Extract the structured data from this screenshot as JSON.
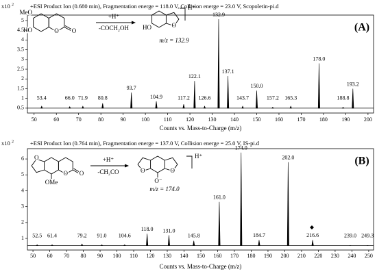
{
  "chart_data": [
    {
      "type": "spectrum",
      "title": "+ESI Product Ion (0.680 min), Fragmentation energe = 118.0 V, Collision energe = 23.0 V, Scopoletin-pi.d",
      "panel": "(A)",
      "y_multiplier": "x10",
      "y_multiplier_exp": "2",
      "x_label": "Counts vs. Mass-to-Charge (m/z)",
      "x": [
        53.4,
        66.0,
        71.9,
        80.8,
        93.7,
        104.9,
        117.2,
        122.1,
        126.6,
        132.9,
        137.1,
        143.7,
        150.0,
        157.2,
        165.3,
        178.0,
        188.8,
        193.2
      ],
      "x_labels": [
        "53.4",
        "66.0",
        "71.9",
        "80.8",
        "93.7",
        "104.9",
        "117.2",
        "122.1",
        "126.6",
        "132.9",
        "137.1",
        "143.7",
        "150.0",
        "157.2",
        "165.3",
        "178.0",
        "188.8",
        "193.2"
      ],
      "values": [
        0.6,
        0.58,
        0.6,
        0.75,
        1.3,
        0.85,
        0.7,
        1.9,
        0.6,
        5.07,
        2.15,
        0.6,
        1.4,
        0.55,
        0.6,
        2.8,
        0.55,
        1.5
      ],
      "baseline": 0.5,
      "color": "#000000",
      "xlim": [
        47,
        202.5
      ],
      "xticks": [
        50,
        60,
        70,
        80,
        90,
        100,
        110,
        120,
        130,
        140,
        150,
        160,
        170,
        180,
        190,
        200
      ],
      "ylim": [
        0.25,
        5.28
      ],
      "yticks": [
        0.5,
        1,
        1.5,
        2,
        2.5,
        3,
        3.5,
        4,
        4.5,
        5
      ],
      "scheme": {
        "reactant_labels": [
          "MeO",
          "HO",
          "O",
          "O"
        ],
        "reagent": "+H⁺",
        "loss": "-COCH₂OH",
        "product_labels": [
          "HO",
          "O"
        ],
        "ion": "H⁺",
        "mz": "m/z = 132.9"
      }
    },
    {
      "type": "spectrum",
      "title": "+ESI Product Ion (0.764 min), Fragmentation energe = 137.0 V, Collision energe = 25.0 V, IS-pi.d",
      "panel": "(B)",
      "y_multiplier": "x10",
      "y_multiplier_exp": "2",
      "x_label": "Counts vs. Mass-to-Charge (m/z)",
      "x": [
        52.5,
        61.4,
        79.2,
        91.0,
        104.6,
        118.0,
        131.0,
        145.8,
        161.0,
        174.0,
        184.7,
        202.0,
        216.6,
        239.0,
        249.3
      ],
      "x_labels": [
        "52.5",
        "61.4",
        "79.2",
        "91.0",
        "104.6",
        "118.0",
        "131.0",
        "145.8",
        "161.0",
        "174.0",
        "184.7",
        "202.0",
        "216.6",
        "239.0",
        "249.3"
      ],
      "values": [
        0.6,
        0.6,
        0.65,
        0.6,
        0.6,
        1.3,
        1.2,
        0.85,
        3.3,
        6.4,
        0.9,
        5.8,
        0.9,
        0.55,
        0.55
      ],
      "baseline": 0.55,
      "color": "#000000",
      "xlim": [
        46.7,
        252.9
      ],
      "xticks": [
        50,
        60,
        70,
        80,
        90,
        100,
        110,
        120,
        130,
        140,
        150,
        160,
        170,
        180,
        190,
        200,
        210,
        220,
        230,
        240,
        250
      ],
      "ylim": [
        0.27,
        6.65
      ],
      "yticks": [
        1,
        2,
        3,
        4,
        5,
        6
      ],
      "scheme": {
        "reactant_labels": [
          "O",
          "O",
          "O",
          "OMe"
        ],
        "reagent": "+H⁺",
        "loss": "-CH₂CO",
        "product_labels": [
          "O",
          "O",
          "O⁻"
        ],
        "ion": "H⁺",
        "mz": "m/z = 174.0"
      }
    }
  ]
}
